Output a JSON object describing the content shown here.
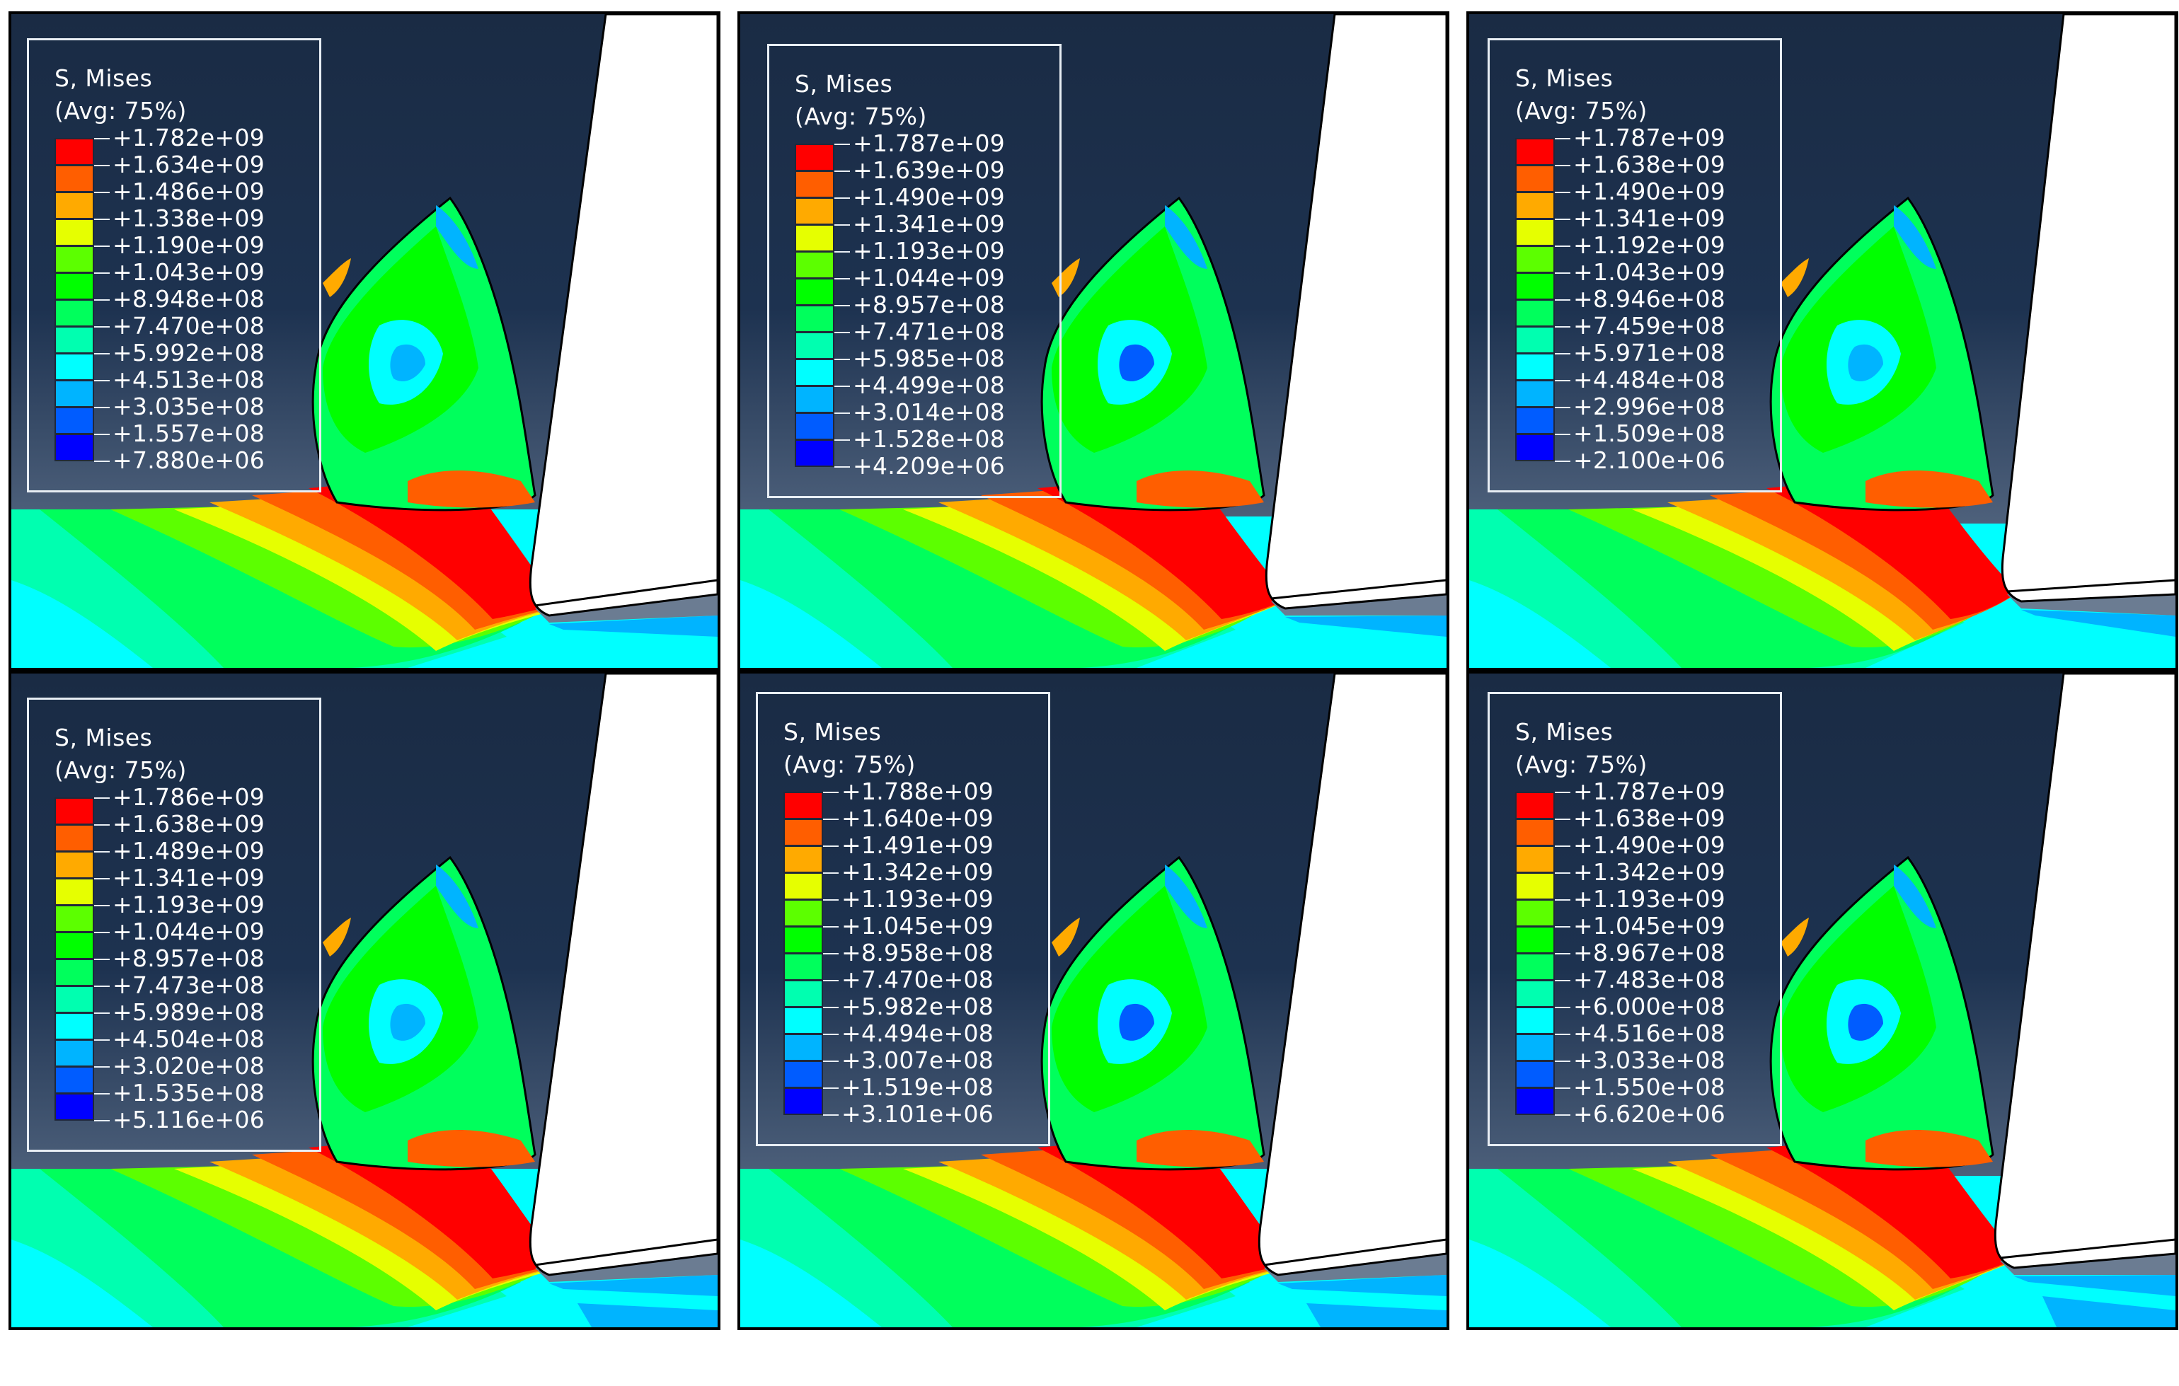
{
  "legend_title": "S, Mises",
  "legend_subtitle": "(Avg: 75%)",
  "colors": {
    "background_dark": "#1b2e48",
    "workpiece_light": "#6b7c92",
    "tool_fill": "#ffffff",
    "contour_scale": [
      "#ff0000",
      "#ff5e00",
      "#ffaa00",
      "#e6ff00",
      "#5cff00",
      "#00ff00",
      "#00ff5c",
      "#00ffb0",
      "#00ffff",
      "#00b4ff",
      "#005cff",
      "#0000ff"
    ]
  },
  "panels": [
    {
      "name": "top-left",
      "values": [
        "+1.782e+09",
        "+1.634e+09",
        "+1.486e+09",
        "+1.338e+09",
        "+1.190e+09",
        "+1.043e+09",
        "+8.948e+08",
        "+7.470e+08",
        "+5.992e+08",
        "+4.513e+08",
        "+3.035e+08",
        "+1.557e+08",
        "+7.880e+06"
      ]
    },
    {
      "name": "top-middle",
      "values": [
        "+1.787e+09",
        "+1.639e+09",
        "+1.490e+09",
        "+1.341e+09",
        "+1.193e+09",
        "+1.044e+09",
        "+8.957e+08",
        "+7.471e+08",
        "+5.985e+08",
        "+4.499e+08",
        "+3.014e+08",
        "+1.528e+08",
        "+4.209e+06"
      ]
    },
    {
      "name": "top-right",
      "values": [
        "+1.787e+09",
        "+1.638e+09",
        "+1.490e+09",
        "+1.341e+09",
        "+1.192e+09",
        "+1.043e+09",
        "+8.946e+08",
        "+7.459e+08",
        "+5.971e+08",
        "+4.484e+08",
        "+2.996e+08",
        "+1.509e+08",
        "+2.100e+06"
      ]
    },
    {
      "name": "bottom-left",
      "values": [
        "+1.786e+09",
        "+1.638e+09",
        "+1.489e+09",
        "+1.341e+09",
        "+1.193e+09",
        "+1.044e+09",
        "+8.957e+08",
        "+7.473e+08",
        "+5.989e+08",
        "+4.504e+08",
        "+3.020e+08",
        "+1.535e+08",
        "+5.116e+06"
      ]
    },
    {
      "name": "bottom-middle",
      "values": [
        "+1.788e+09",
        "+1.640e+09",
        "+1.491e+09",
        "+1.342e+09",
        "+1.193e+09",
        "+1.045e+09",
        "+8.958e+08",
        "+7.470e+08",
        "+5.982e+08",
        "+4.494e+08",
        "+3.007e+08",
        "+1.519e+08",
        "+3.101e+06"
      ]
    },
    {
      "name": "bottom-right",
      "values": [
        "+1.787e+09",
        "+1.638e+09",
        "+1.490e+09",
        "+1.342e+09",
        "+1.193e+09",
        "+1.045e+09",
        "+8.967e+08",
        "+7.483e+08",
        "+6.000e+08",
        "+4.516e+08",
        "+3.033e+08",
        "+1.550e+08",
        "+6.620e+06"
      ]
    }
  ]
}
